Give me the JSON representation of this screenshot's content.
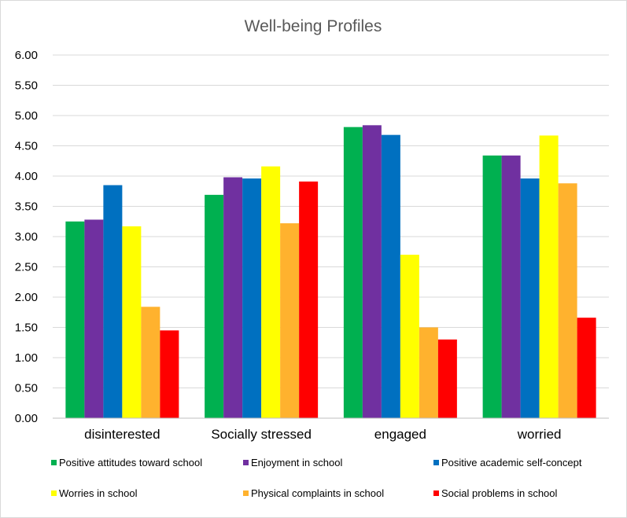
{
  "chart_data": {
    "type": "bar",
    "title": "Well-being Profiles",
    "xlabel": "",
    "ylabel": "",
    "ylim": [
      0,
      6
    ],
    "ytick_step": 0.5,
    "ytick_labels": [
      "0.00",
      "0.50",
      "1.00",
      "1.50",
      "2.00",
      "2.50",
      "3.00",
      "3.50",
      "4.00",
      "4.50",
      "5.00",
      "5.50",
      "6.00"
    ],
    "grid": true,
    "legend_position": "bottom",
    "categories": [
      "disinterested",
      "Socially stressed",
      "engaged",
      "worried"
    ],
    "series": [
      {
        "name": "Positive attitudes toward school",
        "color": "#00b050",
        "values": [
          3.25,
          3.69,
          4.81,
          4.34
        ]
      },
      {
        "name": "Enjoyment in school",
        "color": "#7030a0",
        "values": [
          3.28,
          3.98,
          4.84,
          4.34
        ]
      },
      {
        "name": "Positive academic self-concept",
        "color": "#0070c0",
        "values": [
          3.85,
          3.96,
          4.68,
          3.96
        ]
      },
      {
        "name": "Worries in school",
        "color": "#ffff00",
        "values": [
          3.17,
          4.16,
          2.7,
          4.67
        ]
      },
      {
        "name": "Physical complaints in school",
        "color": "#ffb22e",
        "values": [
          1.84,
          3.22,
          1.5,
          3.88
        ]
      },
      {
        "name": "Social problems in school",
        "color": "#ff0000",
        "values": [
          1.45,
          3.91,
          1.3,
          1.66
        ]
      }
    ]
  }
}
